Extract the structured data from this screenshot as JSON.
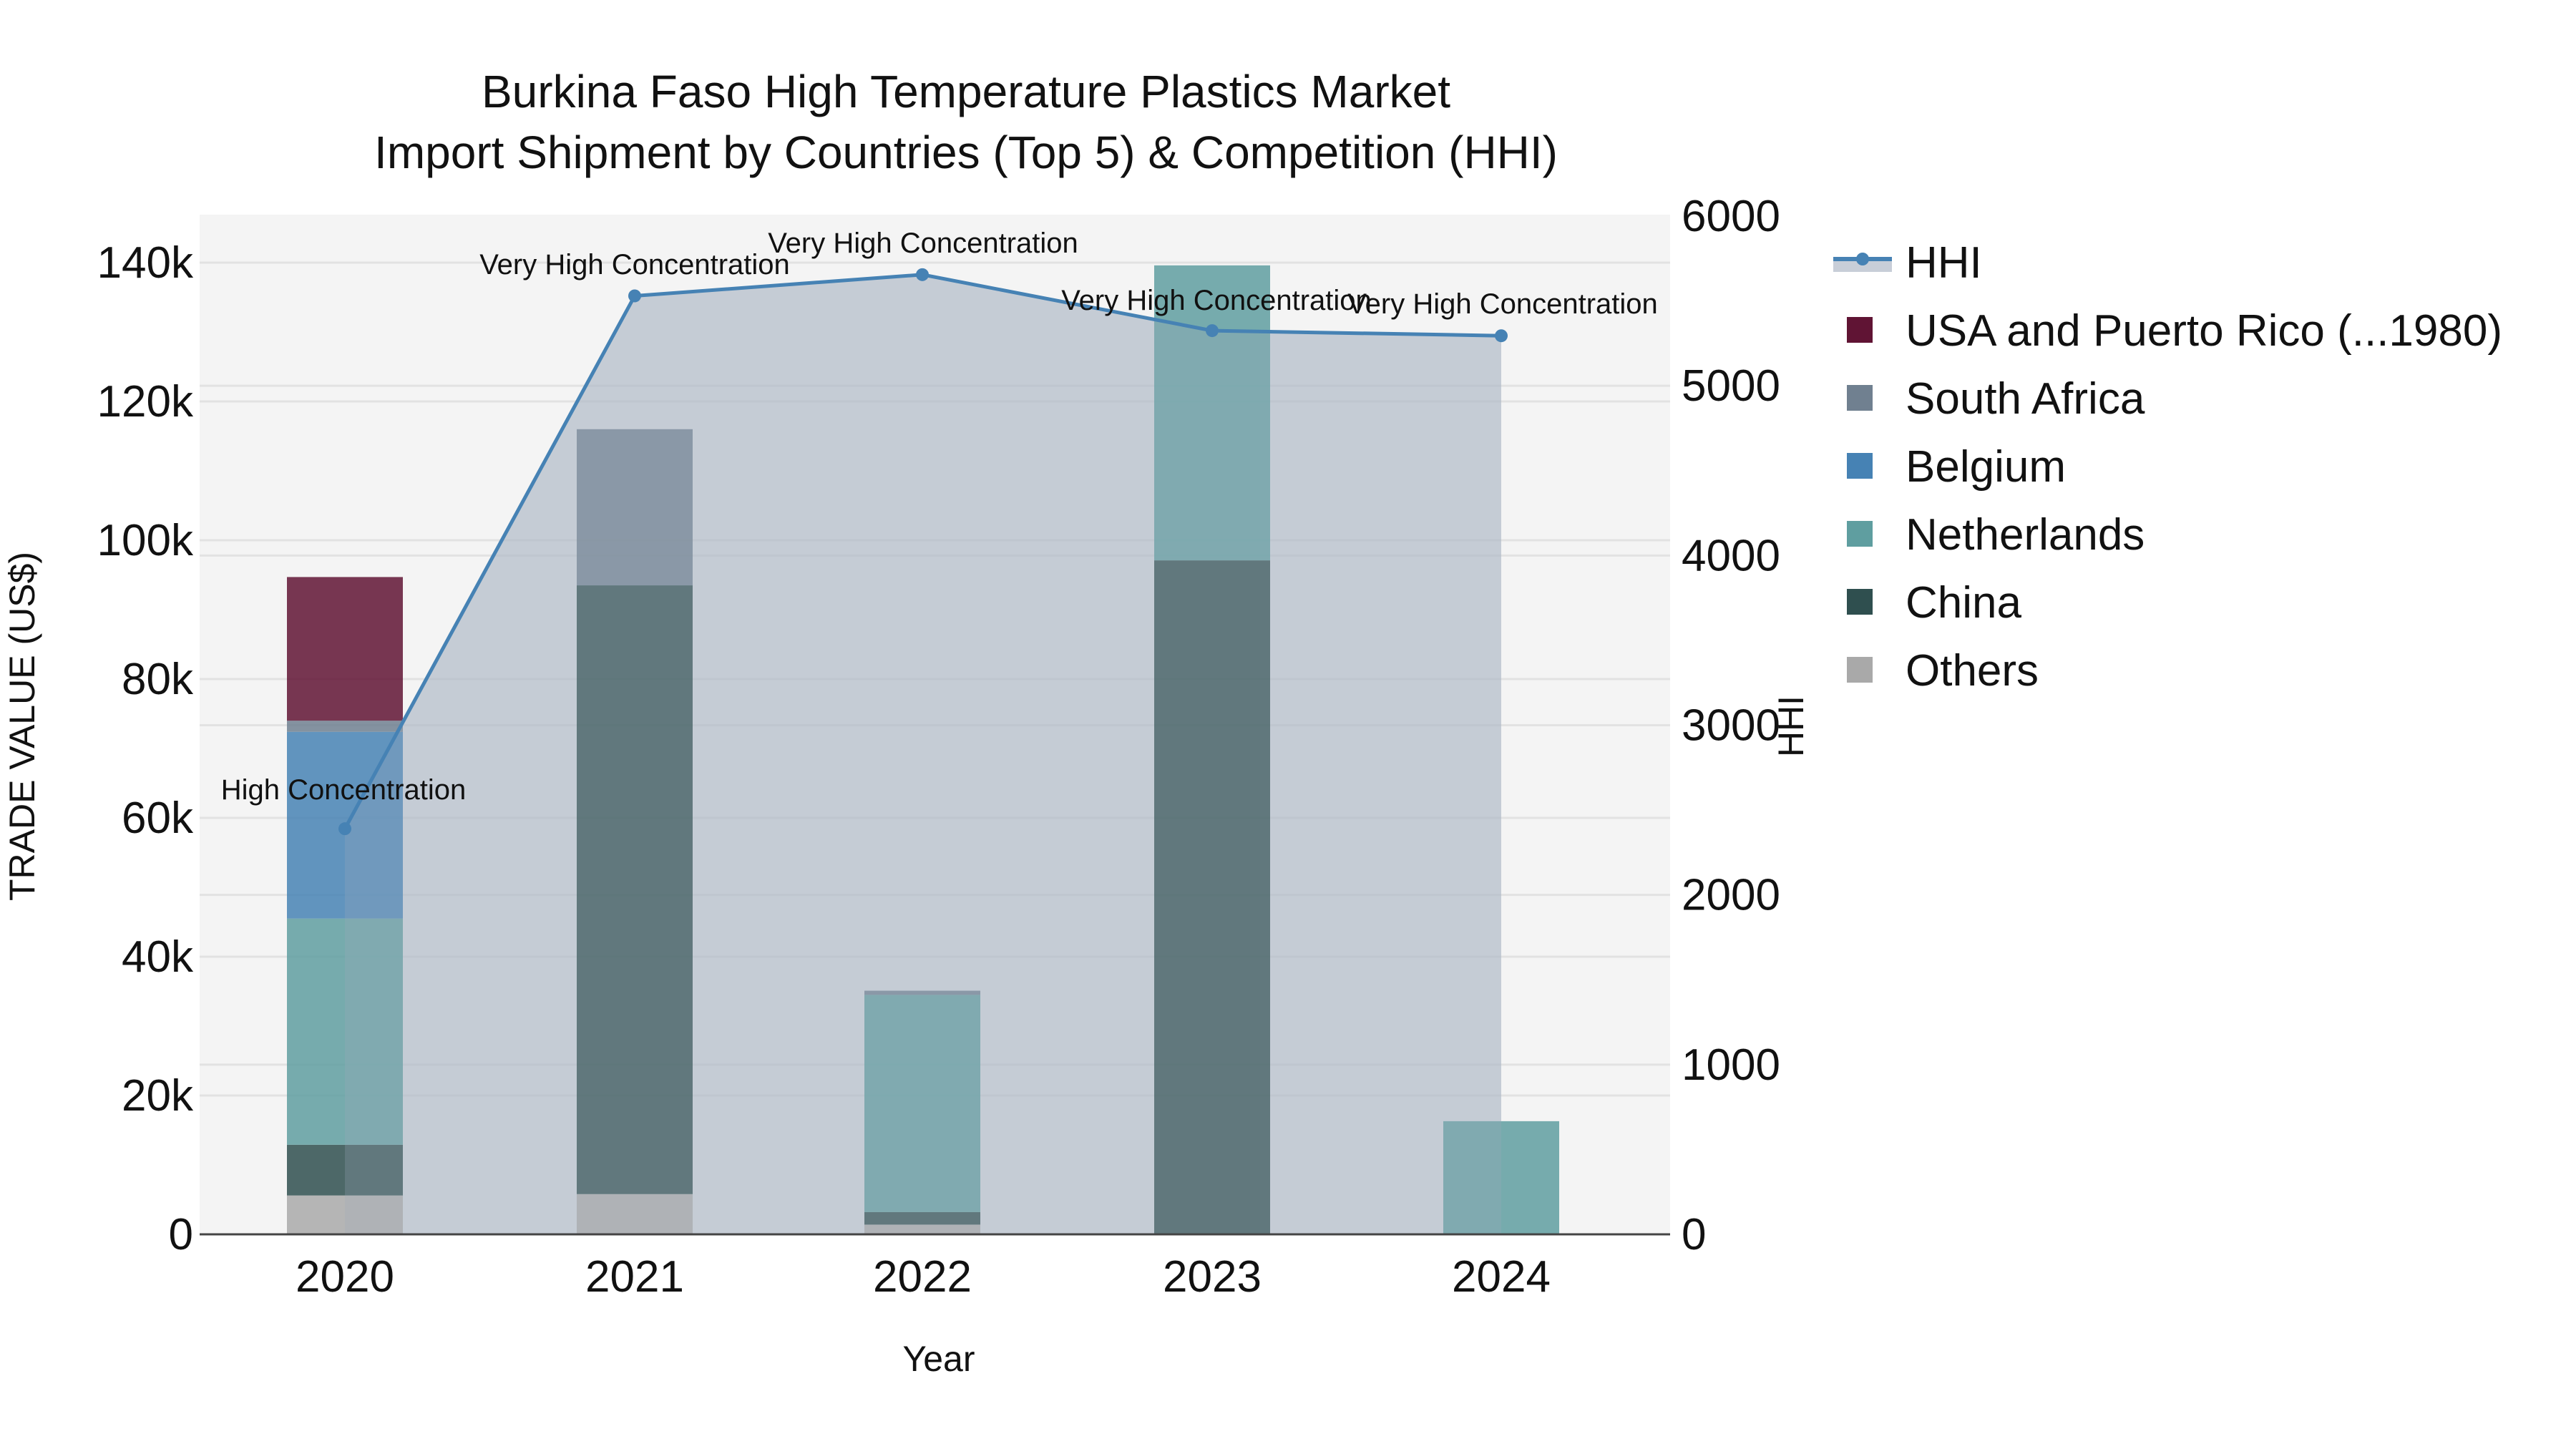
{
  "title": {
    "line1": "Burkina Faso High Temperature Plastics Market",
    "line2": "Import Shipment by Countries (Top 5) & Competition (HHI)"
  },
  "axes": {
    "x_title": "Year",
    "y_left_title": "TRADE VALUE (US$)",
    "y_right_title": "HHI",
    "y_left_ticks": [
      "0",
      "20k",
      "40k",
      "60k",
      "80k",
      "100k",
      "120k",
      "140k"
    ],
    "y_right_ticks": [
      "0",
      "1000",
      "2000",
      "3000",
      "4000",
      "5000",
      "6000"
    ]
  },
  "legend": {
    "items": [
      {
        "label": "HHI",
        "color": "#4682b4",
        "type": "line"
      },
      {
        "label": "USA and Puerto Rico (...1980)",
        "color": "#601434",
        "type": "bar"
      },
      {
        "label": "South Africa",
        "color": "#708090",
        "type": "bar"
      },
      {
        "label": "Belgium",
        "color": "#4682b4",
        "type": "bar"
      },
      {
        "label": "Netherlands",
        "color": "#5f9ea0",
        "type": "bar"
      },
      {
        "label": "China",
        "color": "#2f4f4f",
        "type": "bar"
      },
      {
        "label": "Others",
        "color": "#a9a9a9",
        "type": "bar"
      }
    ]
  },
  "annotations": [
    {
      "year": "2020",
      "text": "High Concentration"
    },
    {
      "year": "2021",
      "text": "Very High Concentration"
    },
    {
      "year": "2022",
      "text": "Very High Concentration"
    },
    {
      "year": "2023",
      "text": "Very High Concentration"
    },
    {
      "year": "2024",
      "text": "Very High Concentration"
    }
  ],
  "chart_data": {
    "type": "bar",
    "stacked": true,
    "title": "Burkina Faso High Temperature Plastics Market Import Shipment by Countries (Top 5) & Competition (HHI)",
    "xlabel": "Year",
    "ylabel": "TRADE VALUE (US$)",
    "y2label": "HHI",
    "categories": [
      "2020",
      "2021",
      "2022",
      "2023",
      "2024"
    ],
    "ylim": [
      0,
      147000
    ],
    "y2lim": [
      0,
      6000
    ],
    "grid": true,
    "legend_position": "right",
    "series": [
      {
        "name": "Others",
        "type": "bar",
        "color": "#a9a9a9",
        "values": [
          5600,
          5800,
          1400,
          0,
          0
        ]
      },
      {
        "name": "China",
        "type": "bar",
        "color": "#2f4f4f",
        "values": [
          7300,
          87700,
          1800,
          97100,
          0
        ]
      },
      {
        "name": "Netherlands",
        "type": "bar",
        "color": "#5f9ea0",
        "values": [
          32600,
          0,
          31300,
          42500,
          16300
        ]
      },
      {
        "name": "Belgium",
        "type": "bar",
        "color": "#4682b4",
        "values": [
          26900,
          0,
          0,
          0,
          0
        ]
      },
      {
        "name": "South Africa",
        "type": "bar",
        "color": "#708090",
        "values": [
          1600,
          22500,
          600,
          0,
          0
        ]
      },
      {
        "name": "USA and Puerto Rico (...1980)",
        "type": "bar",
        "color": "#601434",
        "values": [
          20700,
          0,
          0,
          0,
          0
        ]
      },
      {
        "name": "HHI",
        "type": "line",
        "axis": "y2",
        "fill": "tozeroy",
        "color": "#4682b4",
        "values": [
          2390,
          5530,
          5655,
          5325,
          5295
        ],
        "labels": [
          "High Concentration",
          "Very High Concentration",
          "Very High Concentration",
          "Very High Concentration",
          "Very High Concentration"
        ]
      }
    ]
  }
}
